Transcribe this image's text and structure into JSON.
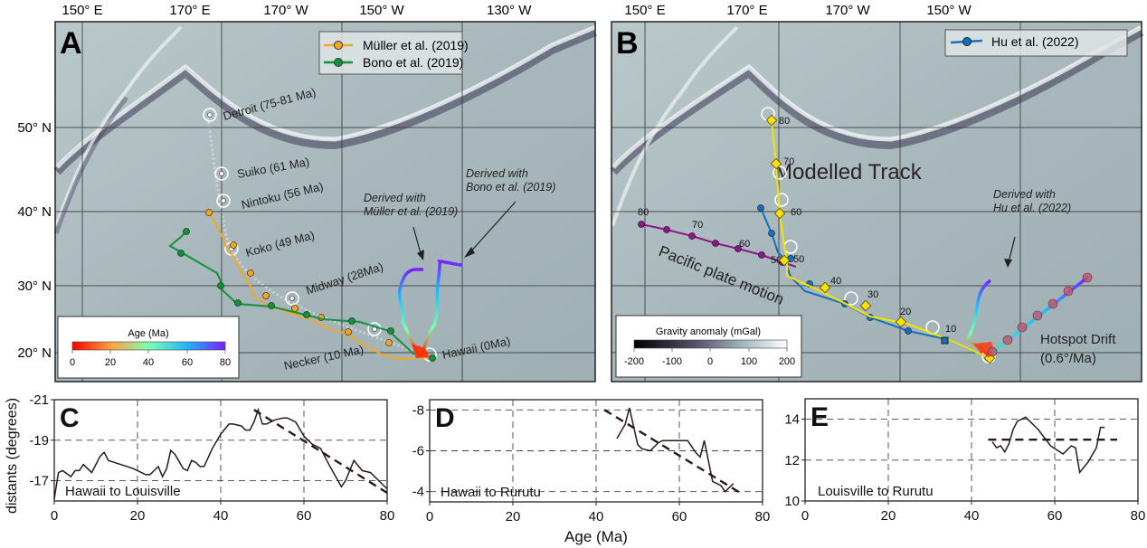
{
  "panel_a": {
    "letter": "A",
    "lon_labels": [
      "150° E",
      "170° E",
      "170° W",
      "150° W",
      "130° W"
    ],
    "lat_labels": [
      "50° N",
      "40° N",
      "30° N",
      "20° N"
    ],
    "legend": [
      {
        "label": "Müller et al. (2019)",
        "color": "#f5a623"
      },
      {
        "label": "Bono et al. (2019)",
        "color": "#13923c"
      }
    ],
    "seamounts": [
      {
        "label": "Detroit (75-81 Ma)"
      },
      {
        "label": "Suiko (61 Ma)"
      },
      {
        "label": "Nintoku (56 Ma)"
      },
      {
        "label": "Koko (49 Ma)"
      },
      {
        "label": "Midway (28Ma)"
      },
      {
        "label": "Necker (10 Ma)"
      },
      {
        "label": "Hawaii (0Ma)"
      }
    ],
    "annotations": [
      {
        "line1": "Derived with",
        "line2": "Müller et al. (2019)"
      },
      {
        "line1": "Derived with",
        "line2": "Bono et al. (2019)"
      }
    ],
    "colorbar": {
      "title": "Age (Ma)",
      "ticks": [
        "0",
        "20",
        "40",
        "60",
        "80"
      ],
      "colors": [
        "#ff0000",
        "#ffa040",
        "#7dffb0",
        "#1fb6ff",
        "#7a1fff"
      ]
    }
  },
  "panel_b": {
    "letter": "B",
    "lon_labels": [
      "150° E",
      "170° E",
      "170° W",
      "150° W"
    ],
    "legend": [
      {
        "label": "Hu et al. (2022)",
        "color": "#1a6fba"
      }
    ],
    "title": "Modelled Track",
    "pacific_label": "Pacific plate motion",
    "drift_label_1": "Hotspot Drift",
    "drift_label_2": "(0.6°/Ma)",
    "annotation": {
      "line1": "Derived with",
      "line2": "Hu et al. (2022)"
    },
    "track_ages": [
      "80",
      "70",
      "60",
      "50",
      "40",
      "30",
      "20",
      "10"
    ],
    "pacific_ages": [
      "80",
      "70",
      "60",
      "50"
    ],
    "colorbar": {
      "title": "Gravity anomaly (mGal)",
      "ticks": [
        "-200",
        "-100",
        "0",
        "100",
        "200"
      ]
    }
  },
  "chart_data": [
    {
      "type": "line",
      "panel": "C",
      "title": "Hawaii to Louisville",
      "ylabel": "distants (degrees)",
      "xlabel": "",
      "xlim": [
        0,
        80
      ],
      "ylim": [
        -16,
        -21
      ],
      "xticks": [
        "0",
        "20",
        "40",
        "60",
        "80"
      ],
      "yticks": [
        "-21",
        "-19",
        "-17"
      ],
      "grid": true,
      "series": [
        {
          "name": "observed",
          "style": "solid",
          "x": [
            0,
            1,
            2,
            4,
            5,
            6,
            7,
            9,
            11,
            12,
            13,
            16,
            19,
            22,
            23,
            25,
            26,
            27,
            28,
            29,
            31,
            32,
            33,
            34,
            35,
            36,
            38,
            40,
            42,
            43,
            45,
            46,
            47,
            48,
            49,
            50,
            51,
            53,
            55,
            56,
            58,
            60,
            62,
            64,
            66,
            69,
            70,
            72,
            74,
            76,
            78,
            80
          ],
          "y": [
            -16.1,
            -17.4,
            -17.5,
            -17.2,
            -17.5,
            -17.5,
            -17.8,
            -17.4,
            -18.2,
            -18.4,
            -18.0,
            -17.8,
            -17.6,
            -17.3,
            -17.3,
            -17.7,
            -17.2,
            -17.6,
            -18.5,
            -18.3,
            -17.6,
            -17.5,
            -18.0,
            -17.9,
            -17.7,
            -17.7,
            -18.6,
            -19.3,
            -19.8,
            -19.8,
            -19.7,
            -19.5,
            -19.5,
            -19.9,
            -20.5,
            -19.8,
            -19.8,
            -20.0,
            -20.1,
            -20.1,
            -19.9,
            -19.2,
            -18.8,
            -18.6,
            -17.8,
            -16.7,
            -17.0,
            -18.0,
            -17.5,
            -17.4,
            -17.0,
            -16.6
          ]
        },
        {
          "name": "trend",
          "style": "dashed",
          "x": [
            48,
            80
          ],
          "y": [
            -20.5,
            -16.4
          ]
        }
      ]
    },
    {
      "type": "line",
      "panel": "D",
      "title": "Hawaii to Rurutu",
      "ylabel": "",
      "xlabel": "Age (Ma)",
      "xlim": [
        0,
        80
      ],
      "ylim": [
        -3.5,
        -8.5
      ],
      "xticks": [
        "0",
        "20",
        "40",
        "60",
        "80"
      ],
      "yticks": [
        "-8",
        "-6",
        "-4"
      ],
      "grid": true,
      "series": [
        {
          "name": "observed",
          "style": "solid",
          "x": [
            45,
            47,
            48,
            50,
            51,
            53,
            55,
            56,
            58,
            60,
            62,
            64,
            65,
            66,
            68,
            70,
            71,
            73
          ],
          "y": [
            -6.6,
            -7.3,
            -8.1,
            -6.3,
            -6.1,
            -6.0,
            -6.4,
            -6.5,
            -6.5,
            -6.5,
            -6.5,
            -5.9,
            -5.7,
            -6.5,
            -4.5,
            -4.3,
            -4.0,
            -4.4
          ]
        },
        {
          "name": "trend",
          "style": "dashed",
          "x": [
            42,
            75
          ],
          "y": [
            -8.0,
            -3.9
          ]
        }
      ]
    },
    {
      "type": "line",
      "panel": "E",
      "title": "Louisville to Rurutu",
      "ylabel": "",
      "xlabel": "",
      "xlim": [
        0,
        80
      ],
      "ylim": [
        10,
        15
      ],
      "xticks": [
        "0",
        "20",
        "40",
        "60",
        "80"
      ],
      "yticks": [
        "14",
        "12",
        "10"
      ],
      "grid": true,
      "series": [
        {
          "name": "observed",
          "style": "solid",
          "x": [
            45,
            46,
            47,
            48,
            49,
            50,
            51,
            53,
            56,
            59,
            62,
            64,
            65,
            66,
            68,
            70,
            71,
            72
          ],
          "y": [
            12.9,
            12.6,
            12.7,
            12.4,
            12.8,
            13.5,
            13.9,
            14.1,
            13.5,
            12.7,
            12.3,
            12.7,
            12.6,
            11.4,
            11.9,
            12.6,
            13.6,
            13.6
          ]
        },
        {
          "name": "trend",
          "style": "dashed",
          "x": [
            44,
            75
          ],
          "y": [
            13.0,
            13.0
          ]
        }
      ]
    }
  ]
}
